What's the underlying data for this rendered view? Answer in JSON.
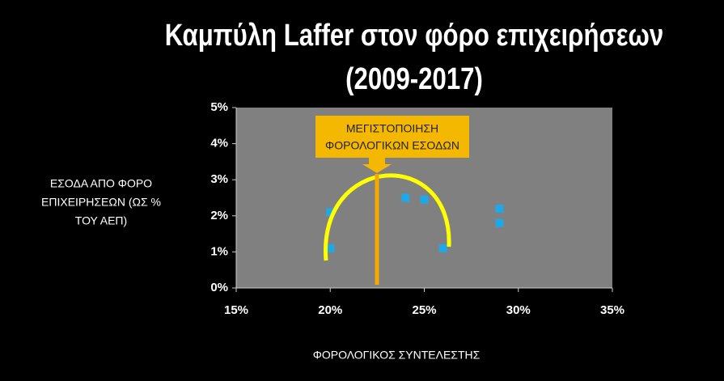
{
  "chart_data": {
    "type": "scatter",
    "title": "Καμπύλη Laffer στον φόρο επιχειρήσεων",
    "subtitle": "(2009-2017)",
    "y_label": [
      "ΕΣΟΔΑ ΑΠΟ ΦΟΡΟ",
      "ΕΠΙΧΕΙΡΗΣΕΩΝ (ΩΣ %",
      "ΤΟΥ ΑΕΠ)"
    ],
    "x_label": "ΦΟΡΟΛΟΓΙΚΟΣ ΣΥΝΤΕΛΕΣΤΗΣ",
    "annotation": [
      "ΜΕΓΙΣΤΟΠΟΙΗΣΗ",
      "ΦΟΡΟΛΟΓΙΚΩΝ ΕΣΟΔΩΝ"
    ],
    "x": [
      20,
      20,
      24,
      25,
      26,
      29,
      29
    ],
    "values": [
      1.1,
      2.1,
      2.5,
      2.45,
      1.1,
      2.2,
      1.8
    ],
    "color": "#1fa8e8",
    "xlim": [
      15,
      35
    ],
    "xticks": [
      {
        "value": 15,
        "label": "15%"
      },
      {
        "value": 20,
        "label": "20%"
      },
      {
        "value": 25,
        "label": "25%"
      },
      {
        "value": 30,
        "label": "30%"
      },
      {
        "value": 35,
        "label": "35%"
      }
    ],
    "ylim": [
      0,
      5
    ],
    "yticks": [
      {
        "value": 0,
        "label": "0%"
      },
      {
        "value": 1,
        "label": "1%"
      },
      {
        "value": 2,
        "label": "2%"
      },
      {
        "value": 3,
        "label": "3%"
      },
      {
        "value": 4,
        "label": "4%"
      },
      {
        "value": 5,
        "label": "5%"
      }
    ]
  }
}
